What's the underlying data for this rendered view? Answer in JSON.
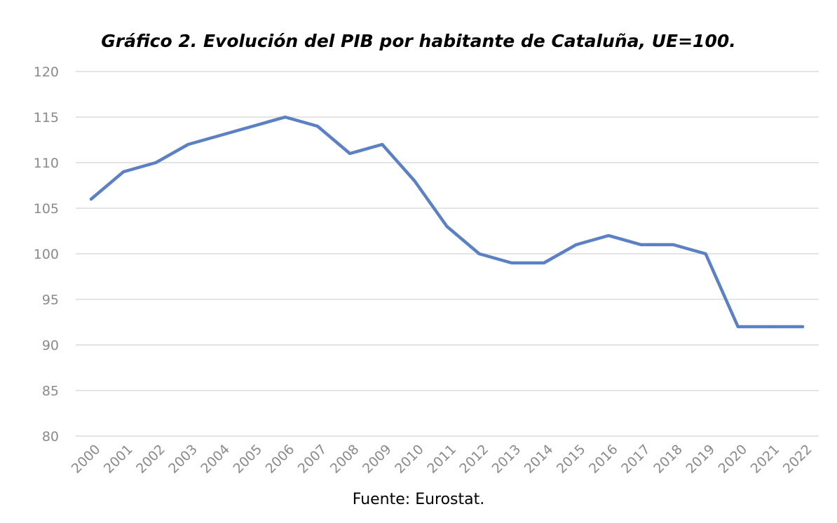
{
  "chart_data": {
    "type": "line",
    "title": "Gráfico 2. Evolución del PIB por habitante de Cataluña, UE=100.",
    "source": "Fuente: Eurostat.",
    "x": [
      "2000",
      "2001",
      "2002",
      "2003",
      "2004",
      "2005",
      "2006",
      "2007",
      "2008",
      "2009",
      "2010",
      "2011",
      "2012",
      "2013",
      "2014",
      "2015",
      "2016",
      "2017",
      "2018",
      "2019",
      "2020",
      "2021",
      "2022"
    ],
    "series": [
      {
        "values": [
          106,
          109,
          110,
          112,
          113,
          114,
          115,
          114,
          111,
          112,
          108,
          103,
          100,
          99,
          99,
          101,
          102,
          101,
          101,
          100,
          92,
          92,
          92
        ],
        "color": "#5b80c4"
      }
    ],
    "ylim": [
      80,
      120
    ],
    "yticks": [
      80,
      85,
      90,
      95,
      100,
      105,
      110,
      115,
      120
    ],
    "grid": true,
    "legend": "none",
    "xlabel": "",
    "ylabel": ""
  }
}
